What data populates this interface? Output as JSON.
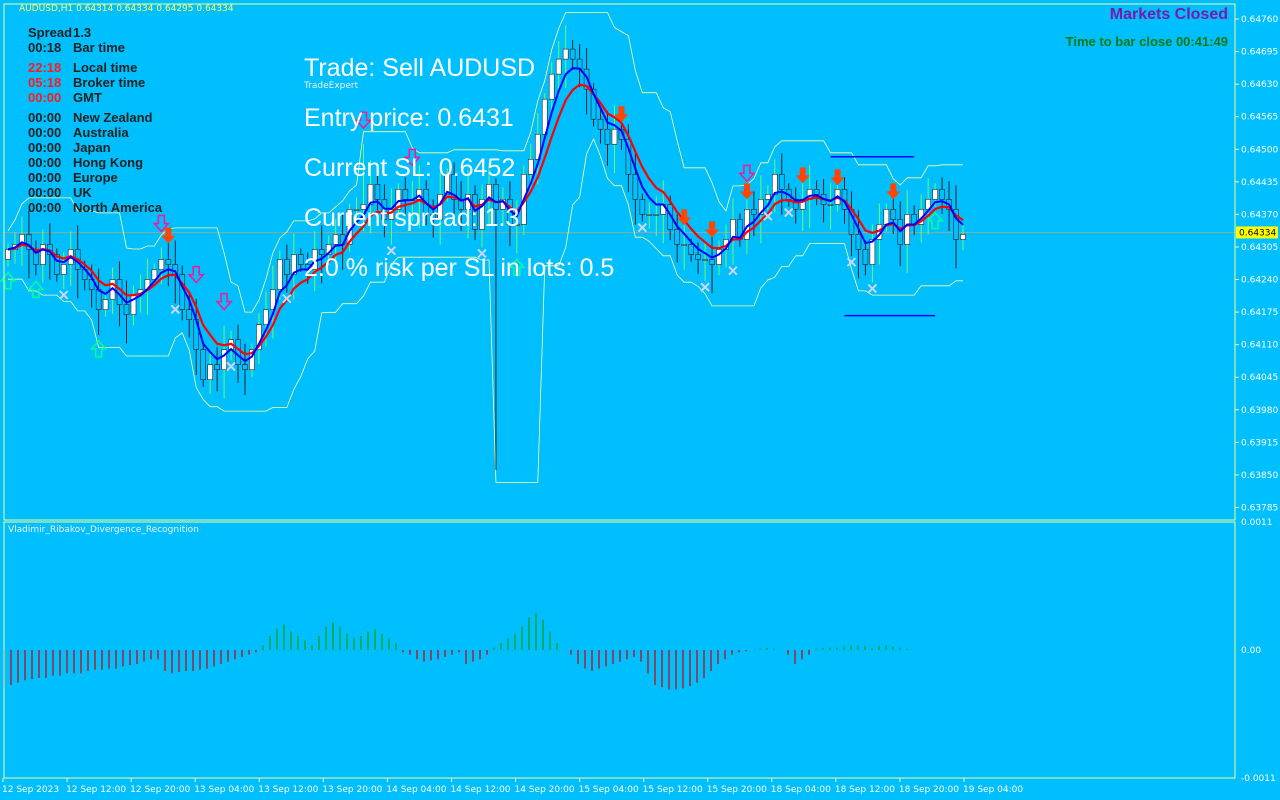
{
  "header": {
    "symbol_line": "AUDUSD,H1  0.64314 0.64334 0.64295 0.64334"
  },
  "status": {
    "markets": "Markets Closed",
    "bar_close": "Time to bar close 00:41:49"
  },
  "info_panel": [
    {
      "time": "Spread",
      "label": "1.3",
      "red": false
    },
    {
      "time": "00:18",
      "label": "Bar time",
      "red": false
    },
    {
      "time": "22:18",
      "label": "Local time",
      "red": true
    },
    {
      "time": "05:18",
      "label": "Broker time",
      "red": true
    },
    {
      "time": "00:00",
      "label": "GMT",
      "red": true
    },
    {
      "time": "00:00",
      "label": "New Zealand",
      "red": false
    },
    {
      "time": "00:00",
      "label": "Australia",
      "red": false
    },
    {
      "time": "00:00",
      "label": "Japan",
      "red": false
    },
    {
      "time": "00:00",
      "label": "Hong Kong",
      "red": false
    },
    {
      "time": "00:00",
      "label": "Europe",
      "red": false
    },
    {
      "time": "00:00",
      "label": "UK",
      "red": false
    },
    {
      "time": "00:00",
      "label": "North America",
      "red": false
    }
  ],
  "trade_panel": {
    "trade": "Trade: Sell AUDUSD",
    "expert": "TradeExpert",
    "entry": "Entry price: 0.6431",
    "sl": "Current SL: 0.6452",
    "spread": "Current spread: 1.3",
    "risk": "2.0 % risk per SL in lots: 0.5"
  },
  "indicator": {
    "name": "Vladimir_Ribakov_Divergence_Recognition"
  },
  "colors": {
    "background": "#00bfff",
    "bull_candle": "#ffffff",
    "bear_candle": "#00bfff",
    "wick_bull": "#66ff66",
    "wick_bear": "#222222",
    "ma_red": "#ff0000",
    "ma_blue": "#0000ff",
    "envelope": "#ffff99",
    "current_price": "#ffff00",
    "osc_pos": "#00a000",
    "osc_neg": "#cc0000",
    "up_arrow": "#00ff99",
    "down_arrow": "#ff1493",
    "signal_arrow": "#ff4500"
  },
  "chart_data": {
    "type": "candlestick",
    "symbol": "AUDUSD",
    "timeframe": "H1",
    "ylim": [
      0.6376,
      0.6479
    ],
    "y_ticks": [
      "0.64760",
      "0.64695",
      "0.64630",
      "0.64565",
      "0.64500",
      "0.64435",
      "0.64370",
      "0.64305",
      "0.64240",
      "0.64175",
      "0.64110",
      "0.64045",
      "0.63980",
      "0.63915",
      "0.63850",
      "0.63785"
    ],
    "current_price": "0.64334",
    "x_ticks": [
      "12 Sep 2023",
      "12 Sep 12:00",
      "12 Sep 20:00",
      "13 Sep 04:00",
      "13 Sep 12:00",
      "13 Sep 20:00",
      "14 Sep 04:00",
      "14 Sep 12:00",
      "14 Sep 20:00",
      "15 Sep 04:00",
      "15 Sep 12:00",
      "15 Sep 20:00",
      "18 Sep 04:00",
      "18 Sep 12:00",
      "18 Sep 20:00",
      "19 Sep 04:00"
    ],
    "close": [
      0.643,
      0.6431,
      0.6433,
      0.643,
      0.6427,
      0.6431,
      0.6429,
      0.6425,
      0.6427,
      0.643,
      0.6426,
      0.6424,
      0.6422,
      0.6418,
      0.642,
      0.6424,
      0.6419,
      0.6417,
      0.6421,
      0.6422,
      0.6424,
      0.6426,
      0.6428,
      0.6427,
      0.6425,
      0.6418,
      0.6416,
      0.641,
      0.6404,
      0.6407,
      0.6406,
      0.641,
      0.6412,
      0.6407,
      0.6406,
      0.641,
      0.6415,
      0.6418,
      0.6422,
      0.6428,
      0.6425,
      0.6429,
      0.6427,
      0.6426,
      0.643,
      0.6429,
      0.6431,
      0.6433,
      0.6431,
      0.6438,
      0.6438,
      0.6439,
      0.6443,
      0.644,
      0.6436,
      0.6438,
      0.6442,
      0.644,
      0.644,
      0.6442,
      0.6437,
      0.6436,
      0.6441,
      0.6445,
      0.644,
      0.6438,
      0.6441,
      0.6434,
      0.644,
      0.6443,
      0.6438,
      0.644,
      0.6435,
      0.6435,
      0.6445,
      0.6448,
      0.6453,
      0.646,
      0.6465,
      0.6468,
      0.647,
      0.6468,
      0.6466,
      0.6462,
      0.6456,
      0.6454,
      0.6451,
      0.6454,
      0.6452,
      0.6445,
      0.644,
      0.6437,
      0.6437,
      0.6437,
      0.6439,
      0.6434,
      0.6431,
      0.6431,
      0.6429,
      0.6428,
      0.6428,
      0.6427,
      0.643,
      0.6432,
      0.6436,
      0.6432,
      0.6438,
      0.6437,
      0.644,
      0.6441,
      0.6445,
      0.6442,
      0.644,
      0.6438,
      0.644,
      0.6442,
      0.6441,
      0.6439,
      0.6439,
      0.6442,
      0.6438,
      0.6433,
      0.643,
      0.6427,
      0.6432,
      0.6435,
      0.6438,
      0.6436,
      0.6431,
      0.6437,
      0.6435,
      0.6438,
      0.644,
      0.6442,
      0.644,
      0.6438,
      0.6432,
      0.6433
    ]
  },
  "oscillator_data": {
    "type": "histogram",
    "ylim": [
      -0.0011,
      0.0011
    ],
    "y_ticks": [
      "0.0011",
      "0.00",
      "-0.0011"
    ],
    "values": [
      -0.00032,
      -0.0003,
      -0.00028,
      -0.00026,
      -0.00025,
      -0.00024,
      -0.00024,
      -0.00022,
      -0.00022,
      -0.0002,
      -0.0002,
      -0.0002,
      -0.00018,
      -0.00017,
      -0.00017,
      -0.00016,
      -0.00016,
      -0.00014,
      -0.00013,
      -0.00012,
      -0.0001,
      -8e-05,
      -8e-05,
      -0.00018,
      -0.0002,
      -0.00019,
      -0.00018,
      -0.00018,
      -0.00017,
      -0.00016,
      -0.00014,
      -0.00012,
      -0.0001,
      -8e-05,
      -6e-05,
      -4e-05,
      -2e-05,
      4e-05,
      0.00012,
      0.00018,
      0.00022,
      0.00016,
      0.00012,
      8e-05,
      4e-05,
      0.00012,
      0.0002,
      0.00024,
      0.0002,
      0.00014,
      0.0001,
      0.00012,
      0.00016,
      0.00018,
      0.00014,
      0.0001,
      6e-05,
      -2e-05,
      -4e-05,
      -8e-05,
      -0.0001,
      -9e-05,
      -8e-05,
      -6e-05,
      -4e-05,
      -2e-05,
      -0.00012,
      -0.0001,
      -8e-05,
      -4e-05,
      2e-05,
      6e-05,
      0.0001,
      0.00014,
      0.0002,
      0.00028,
      0.00032,
      0.00026,
      0.00016,
      6e-05,
      0.0,
      -4e-05,
      -0.00012,
      -0.00016,
      -0.00018,
      -0.00016,
      -0.00014,
      -0.00012,
      -0.0001,
      -8e-05,
      -6e-05,
      -0.0001,
      -0.0002,
      -0.0003,
      -0.00032,
      -0.00034,
      -0.00034,
      -0.00033,
      -0.00031,
      -0.00028,
      -0.00024,
      -0.00018,
      -0.00012,
      -8e-05,
      -4e-05,
      -2e-05,
      -1e-05,
      0.0,
      1e-05,
      2e-05,
      1e-05,
      0.0,
      -4e-05,
      -0.00012,
      -8e-05,
      -4e-05,
      1e-05,
      2e-05,
      2e-05,
      2e-05,
      3e-05,
      4e-05,
      4e-05,
      3e-05,
      2e-05,
      3e-05,
      4e-05,
      3e-05,
      2e-05,
      1e-05,
      0.0,
      0.0,
      0.0,
      0.0,
      0.0,
      0.0,
      0.0,
      0.0
    ]
  },
  "signals": {
    "up_arrows": [
      0,
      4,
      13,
      73,
      133
    ],
    "down_arrows": [
      22,
      27,
      31,
      51,
      58,
      106
    ],
    "signal_down": [
      23,
      88,
      97,
      101,
      106,
      114,
      119,
      127
    ],
    "crosses": [
      8,
      24,
      32,
      40,
      55,
      68,
      91,
      100,
      104,
      109,
      112,
      121,
      124
    ]
  }
}
